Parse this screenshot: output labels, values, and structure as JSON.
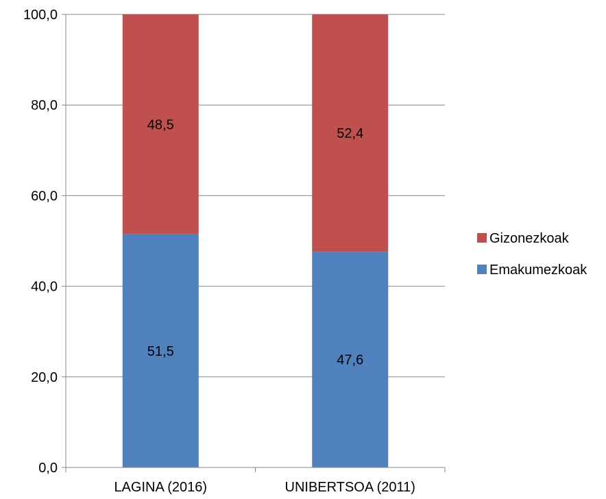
{
  "chart_data": {
    "type": "bar",
    "stacked": true,
    "categories": [
      "LAGINA (2016)",
      "UNIBERTSOA (2011)"
    ],
    "series": [
      {
        "name": "Emakumezkoak",
        "values": [
          51.5,
          47.6
        ],
        "labels": [
          "51,5",
          "47,6"
        ],
        "color": "#4F81BD"
      },
      {
        "name": "Gizonezkoak",
        "values": [
          48.5,
          52.4
        ],
        "labels": [
          "48,5",
          "52,4"
        ],
        "color": "#C0504D"
      }
    ],
    "yticks": [
      0,
      20,
      40,
      60,
      80,
      100
    ],
    "ytick_labels": [
      "0,0",
      "20,0",
      "40,0",
      "60,0",
      "80,0",
      "100,0"
    ],
    "ylim": [
      0,
      100
    ],
    "grid": true,
    "legend": {
      "position": "right",
      "entries": [
        "Gizonezkoak",
        "Emakumezkoak"
      ]
    }
  }
}
